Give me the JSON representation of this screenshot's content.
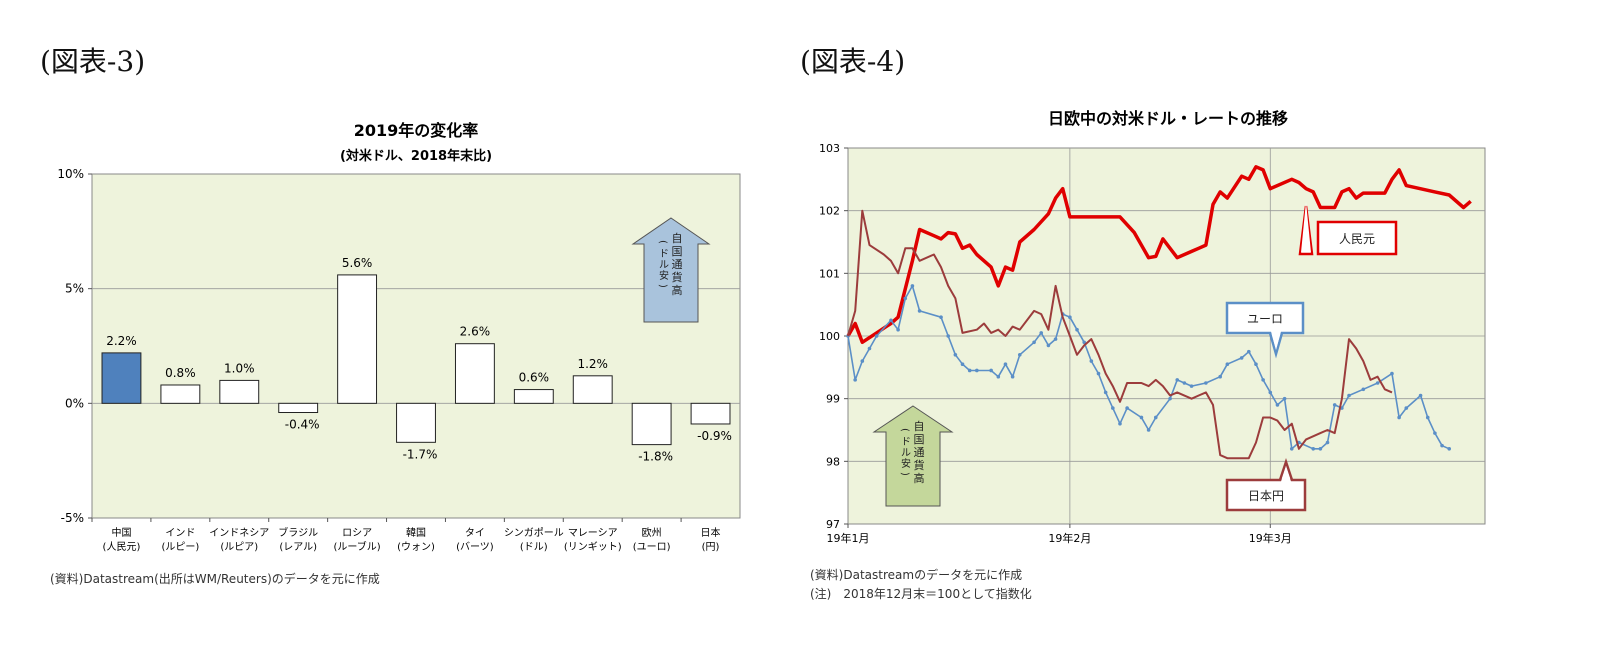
{
  "figure_left": {
    "label": "(図表-3)",
    "source": "(資料)Datastream(出所はWM/Reuters)のデータを元に作成"
  },
  "figure_right": {
    "label": "(図表-4)",
    "source": "(資料)Datastreamのデータを元に作成",
    "note": "(注)　2018年12月末＝100として指数化"
  },
  "chart_data": [
    {
      "type": "bar",
      "title": "2019年の変化率",
      "subtitle": "(対米ドル、2018年末比)",
      "categories": [
        [
          "中国",
          "(人民元)"
        ],
        [
          "インド",
          "(ルピー)"
        ],
        [
          "インドネシア",
          "(ルピア)"
        ],
        [
          "ブラジル",
          "(レアル)"
        ],
        [
          "ロシア",
          "(ルーブル)"
        ],
        [
          "韓国",
          "(ウォン)"
        ],
        [
          "タイ",
          "(バーツ)"
        ],
        [
          "シンガポール",
          "(ドル)"
        ],
        [
          "マレーシア",
          "(リンギット)"
        ],
        [
          "欧州",
          "(ユーロ)"
        ],
        [
          "日本",
          "(円)"
        ]
      ],
      "values": [
        2.2,
        0.8,
        1.0,
        -0.4,
        5.6,
        -1.7,
        2.6,
        0.6,
        1.2,
        -1.8,
        -0.9
      ],
      "value_labels": [
        "2.2%",
        "0.8%",
        "1.0%",
        "-0.4%",
        "5.6%",
        "-1.7%",
        "2.6%",
        "0.6%",
        "1.2%",
        "-1.8%",
        "-0.9%"
      ],
      "highlight_index": 0,
      "highlight_color": "#4f81bd",
      "bar_color": "#ffffff",
      "plot_background": "#eef3dc",
      "ylim": [
        -5,
        10
      ],
      "yticks": [
        -5,
        0,
        5,
        10
      ],
      "ytick_labels": [
        "-5%",
        "0%",
        "5%",
        "10%"
      ],
      "annotation": {
        "text": "自国通貨高",
        "paren": "(ドル安)",
        "color": "#a9c3dc"
      }
    },
    {
      "type": "line",
      "title": "日欧中の対米ドル・レートの推移",
      "ylim": [
        97,
        103
      ],
      "yticks": [
        97,
        98,
        99,
        100,
        101,
        102,
        103
      ],
      "xticks": [
        {
          "label": "19年1月",
          "t": 0
        },
        {
          "label": "19年2月",
          "t": 31
        },
        {
          "label": "19年3月",
          "t": 59
        }
      ],
      "xmax": 89,
      "plot_background": "#eef3dc",
      "annotation": {
        "text": "自国通貨高",
        "paren": "(ドル安)",
        "color": "#c4d79b"
      },
      "series": [
        {
          "name": "人民元",
          "color": "#e00000",
          "points": [
            [
              0,
              100.0
            ],
            [
              1,
              100.2
            ],
            [
              2,
              99.9
            ],
            [
              4,
              100.05
            ],
            [
              6,
              100.2
            ],
            [
              7,
              100.3
            ],
            [
              9,
              101.2
            ],
            [
              10,
              101.7
            ],
            [
              12,
              101.6
            ],
            [
              13,
              101.55
            ],
            [
              14,
              101.65
            ],
            [
              15,
              101.63
            ],
            [
              16,
              101.4
            ],
            [
              17,
              101.45
            ],
            [
              18,
              101.3
            ],
            [
              20,
              101.1
            ],
            [
              21,
              100.8
            ],
            [
              22,
              101.1
            ],
            [
              23,
              101.05
            ],
            [
              24,
              101.5
            ],
            [
              26,
              101.7
            ],
            [
              28,
              101.95
            ],
            [
              29,
              102.2
            ],
            [
              30,
              102.35
            ],
            [
              31,
              101.9
            ],
            [
              35,
              101.9
            ],
            [
              38,
              101.9
            ],
            [
              40,
              101.65
            ],
            [
              42,
              101.25
            ],
            [
              43,
              101.27
            ],
            [
              44,
              101.55
            ],
            [
              46,
              101.25
            ],
            [
              48,
              101.35
            ],
            [
              49,
              101.4
            ],
            [
              50,
              101.45
            ],
            [
              51,
              102.1
            ],
            [
              52,
              102.3
            ],
            [
              53,
              102.2
            ],
            [
              55,
              102.55
            ],
            [
              56,
              102.5
            ],
            [
              57,
              102.7
            ],
            [
              58,
              102.65
            ],
            [
              59,
              102.35
            ],
            [
              62,
              102.5
            ],
            [
              63,
              102.45
            ],
            [
              64,
              102.35
            ],
            [
              65,
              102.3
            ],
            [
              66,
              102.05
            ],
            [
              67,
              102.05
            ],
            [
              68,
              102.05
            ],
            [
              69,
              102.3
            ],
            [
              70,
              102.35
            ],
            [
              71,
              102.2
            ],
            [
              72,
              102.28
            ],
            [
              75,
              102.28
            ],
            [
              76,
              102.5
            ],
            [
              77,
              102.65
            ],
            [
              78,
              102.4
            ],
            [
              82,
              102.3
            ],
            [
              84,
              102.25
            ],
            [
              86,
              102.05
            ],
            [
              87,
              102.15
            ]
          ]
        },
        {
          "name": "ユーロ",
          "color": "#5b8fc7",
          "points": [
            [
              0,
              100.0
            ],
            [
              1,
              99.3
            ],
            [
              2,
              99.6
            ],
            [
              3,
              99.8
            ],
            [
              4,
              100.0
            ],
            [
              6,
              100.25
            ],
            [
              7,
              100.1
            ],
            [
              8,
              100.6
            ],
            [
              9,
              100.8
            ],
            [
              10,
              100.4
            ],
            [
              13,
              100.3
            ],
            [
              14,
              100.0
            ],
            [
              15,
              99.7
            ],
            [
              16,
              99.55
            ],
            [
              17,
              99.45
            ],
            [
              18,
              99.45
            ],
            [
              20,
              99.45
            ],
            [
              21,
              99.35
            ],
            [
              22,
              99.55
            ],
            [
              23,
              99.35
            ],
            [
              24,
              99.7
            ],
            [
              26,
              99.9
            ],
            [
              27,
              100.05
            ],
            [
              28,
              99.85
            ],
            [
              29,
              99.95
            ],
            [
              30,
              100.35
            ],
            [
              31,
              100.3
            ],
            [
              32,
              100.1
            ],
            [
              33,
              99.9
            ],
            [
              34,
              99.6
            ],
            [
              35,
              99.4
            ],
            [
              36,
              99.1
            ],
            [
              37,
              98.85
            ],
            [
              38,
              98.6
            ],
            [
              39,
              98.85
            ],
            [
              41,
              98.7
            ],
            [
              42,
              98.5
            ],
            [
              43,
              98.7
            ],
            [
              45,
              99.0
            ],
            [
              46,
              99.3
            ],
            [
              47,
              99.25
            ],
            [
              48,
              99.2
            ],
            [
              50,
              99.25
            ],
            [
              52,
              99.35
            ],
            [
              53,
              99.55
            ],
            [
              55,
              99.65
            ],
            [
              56,
              99.75
            ],
            [
              57,
              99.55
            ],
            [
              58,
              99.3
            ],
            [
              59,
              99.1
            ],
            [
              60,
              98.9
            ],
            [
              61,
              99.0
            ],
            [
              62,
              98.2
            ],
            [
              63,
              98.3
            ],
            [
              65,
              98.2
            ],
            [
              66,
              98.2
            ],
            [
              67,
              98.3
            ],
            [
              68,
              98.9
            ],
            [
              69,
              98.85
            ],
            [
              70,
              99.05
            ],
            [
              72,
              99.15
            ],
            [
              74,
              99.25
            ],
            [
              76,
              99.4
            ],
            [
              77,
              98.7
            ],
            [
              78,
              98.85
            ],
            [
              80,
              99.05
            ],
            [
              81,
              98.7
            ],
            [
              82,
              98.45
            ],
            [
              83,
              98.25
            ],
            [
              84,
              98.2
            ]
          ]
        },
        {
          "name": "日本円",
          "color": "#9c3c3c",
          "points": [
            [
              0,
              100.0
            ],
            [
              1,
              100.4
            ],
            [
              2,
              102.0
            ],
            [
              3,
              101.45
            ],
            [
              5,
              101.3
            ],
            [
              6,
              101.2
            ],
            [
              7,
              101.0
            ],
            [
              8,
              101.4
            ],
            [
              9,
              101.4
            ],
            [
              10,
              101.2
            ],
            [
              12,
              101.3
            ],
            [
              13,
              101.1
            ],
            [
              14,
              100.8
            ],
            [
              15,
              100.6
            ],
            [
              16,
              100.05
            ],
            [
              18,
              100.1
            ],
            [
              19,
              100.2
            ],
            [
              20,
              100.05
            ],
            [
              21,
              100.1
            ],
            [
              22,
              100.0
            ],
            [
              23,
              100.15
            ],
            [
              24,
              100.1
            ],
            [
              26,
              100.4
            ],
            [
              27,
              100.35
            ],
            [
              28,
              100.1
            ],
            [
              29,
              100.8
            ],
            [
              30,
              100.3
            ],
            [
              31,
              100.0
            ],
            [
              32,
              99.7
            ],
            [
              33,
              99.85
            ],
            [
              34,
              99.95
            ],
            [
              35,
              99.7
            ],
            [
              36,
              99.4
            ],
            [
              37,
              99.2
            ],
            [
              38,
              98.95
            ],
            [
              39,
              99.25
            ],
            [
              41,
              99.25
            ],
            [
              42,
              99.2
            ],
            [
              43,
              99.3
            ],
            [
              44,
              99.2
            ],
            [
              45,
              99.05
            ],
            [
              46,
              99.1
            ],
            [
              48,
              99.0
            ],
            [
              49,
              99.05
            ],
            [
              50,
              99.1
            ],
            [
              51,
              98.9
            ],
            [
              52,
              98.1
            ],
            [
              53,
              98.05
            ],
            [
              56,
              98.05
            ],
            [
              57,
              98.3
            ],
            [
              58,
              98.7
            ],
            [
              59,
              98.7
            ],
            [
              60,
              98.65
            ],
            [
              61,
              98.5
            ],
            [
              62,
              98.6
            ],
            [
              63,
              98.2
            ],
            [
              64,
              98.35
            ],
            [
              66,
              98.45
            ],
            [
              67,
              98.5
            ],
            [
              68,
              98.45
            ],
            [
              69,
              99.0
            ],
            [
              70,
              99.95
            ],
            [
              71,
              99.8
            ],
            [
              72,
              99.6
            ],
            [
              73,
              99.3
            ],
            [
              74,
              99.35
            ],
            [
              75,
              99.15
            ],
            [
              76,
              99.1
            ]
          ]
        }
      ]
    }
  ]
}
